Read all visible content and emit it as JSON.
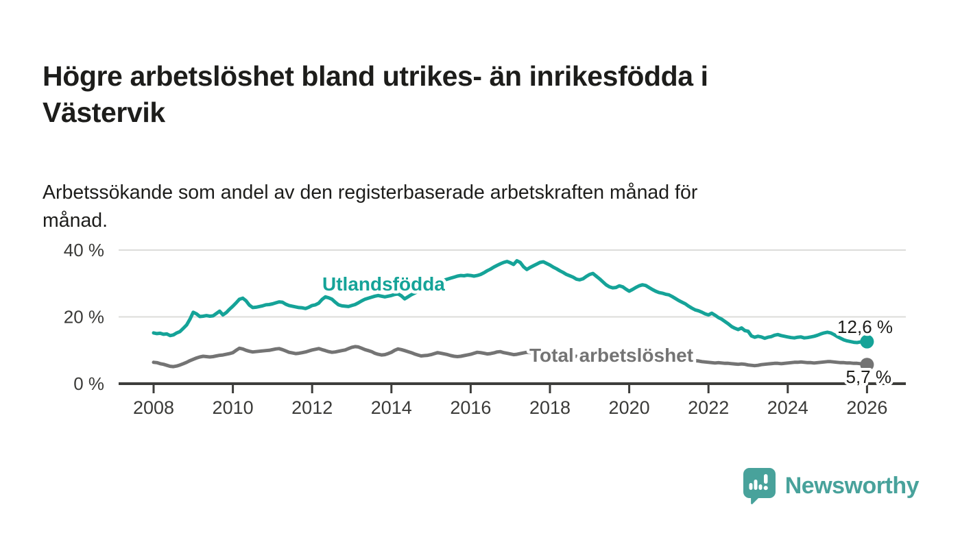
{
  "branding": {
    "logo_text": "Newsworthy",
    "logo_icon": "newsworthy-bar-chart-speech-bubble-icon",
    "logo_color": "#48a29b"
  },
  "colors": {
    "accent_teal": "#15a398",
    "series_gray": "#747474",
    "axis": "#3d3d3b",
    "gridline": "#dcdcda",
    "text_dark": "#1d1d1b",
    "tick_text": "#3a3a38"
  },
  "chart_data": {
    "type": "line",
    "title": "Högre arbetslöshet bland utrikes- än inrikesfödda i Västervik",
    "subtitle": "Arbetssökande som andel av den registerbaserade arbetskraften månad för månad.",
    "xlabel": "",
    "ylabel": "",
    "grid": "horizontal",
    "legend_position": "inline-labels",
    "x_axis": {
      "unit": "year",
      "range": [
        2007.1,
        2027.0
      ],
      "ticks": [
        2008,
        2010,
        2012,
        2014,
        2016,
        2018,
        2020,
        2022,
        2024,
        2026
      ]
    },
    "y_axis": {
      "unit": "percent",
      "range": [
        0,
        44
      ],
      "ticks": [
        {
          "value": 0,
          "label": "0 %"
        },
        {
          "value": 20,
          "label": "20 %"
        },
        {
          "value": 40,
          "label": "40 %"
        }
      ]
    },
    "series": [
      {
        "name": "Utlandsfödda",
        "color": "#15a398",
        "end_label": "12,6 %",
        "end_value": 12.6,
        "x_start": 2008,
        "x_step_months": 1,
        "values": [
          15.2,
          15.0,
          15.1,
          14.8,
          14.9,
          14.4,
          14.6,
          15.2,
          15.6,
          16.6,
          17.6,
          19.3,
          21.4,
          20.9,
          20.1,
          20.2,
          20.4,
          20.2,
          20.3,
          21.0,
          21.7,
          20.6,
          21.3,
          22.3,
          23.2,
          24.2,
          25.3,
          25.6,
          24.8,
          23.5,
          22.8,
          22.9,
          23.1,
          23.3,
          23.6,
          23.7,
          23.9,
          24.2,
          24.5,
          24.4,
          23.8,
          23.4,
          23.2,
          23.0,
          22.8,
          22.7,
          22.5,
          22.9,
          23.4,
          23.6,
          24.1,
          25.2,
          26.0,
          25.7,
          25.3,
          24.4,
          23.6,
          23.3,
          23.2,
          23.1,
          23.4,
          23.7,
          24.2,
          24.8,
          25.3,
          25.6,
          25.9,
          26.2,
          26.4,
          26.2,
          26.0,
          26.2,
          26.4,
          26.7,
          26.9,
          26.3,
          25.4,
          26.0,
          26.6,
          27.1,
          27.6,
          28.0,
          28.4,
          28.9,
          29.4,
          29.9,
          30.3,
          30.7,
          31.0,
          31.3,
          31.6,
          31.9,
          32.2,
          32.4,
          32.3,
          32.5,
          32.4,
          32.2,
          32.4,
          32.7,
          33.2,
          33.8,
          34.3,
          34.9,
          35.4,
          35.9,
          36.3,
          36.6,
          36.2,
          35.7,
          36.8,
          36.3,
          35.0,
          34.2,
          34.8,
          35.3,
          35.8,
          36.3,
          36.5,
          36.0,
          35.5,
          34.9,
          34.4,
          33.8,
          33.3,
          32.7,
          32.3,
          31.9,
          31.3,
          31.1,
          31.4,
          32.1,
          32.7,
          33.0,
          32.2,
          31.4,
          30.5,
          29.6,
          29.0,
          28.7,
          28.8,
          29.3,
          29.0,
          28.3,
          27.7,
          28.2,
          28.8,
          29.3,
          29.6,
          29.4,
          28.8,
          28.2,
          27.7,
          27.3,
          27.1,
          26.8,
          26.6,
          26.1,
          25.5,
          24.9,
          24.4,
          23.9,
          23.2,
          22.6,
          22.1,
          21.8,
          21.4,
          20.9,
          20.6,
          21.1,
          20.5,
          19.8,
          19.3,
          18.6,
          17.9,
          17.1,
          16.6,
          16.2,
          16.7,
          15.9,
          15.7,
          14.3,
          13.9,
          14.2,
          14.0,
          13.6,
          13.9,
          14.1,
          14.5,
          14.7,
          14.4,
          14.2,
          14.0,
          13.8,
          13.7,
          13.9,
          14.0,
          13.7,
          13.8,
          14.0,
          14.2,
          14.5,
          14.9,
          15.2,
          15.4,
          15.2,
          14.7,
          14.1,
          13.6,
          13.1,
          12.8,
          12.6,
          12.4,
          12.3,
          12.5,
          12.7,
          12.6
        ]
      },
      {
        "name": "Total arbetslöshet",
        "color": "#747474",
        "end_label": "5,7 %",
        "end_value": 5.7,
        "x_start": 2008,
        "x_step_months": 1,
        "values": [
          6.4,
          6.3,
          6.0,
          5.8,
          5.5,
          5.2,
          5.1,
          5.3,
          5.6,
          6.0,
          6.4,
          6.9,
          7.3,
          7.7,
          8.0,
          8.2,
          8.1,
          8.0,
          8.1,
          8.3,
          8.5,
          8.6,
          8.8,
          9.0,
          9.3,
          10.0,
          10.6,
          10.4,
          10.0,
          9.7,
          9.5,
          9.6,
          9.7,
          9.8,
          9.9,
          10.0,
          10.2,
          10.4,
          10.5,
          10.2,
          9.8,
          9.4,
          9.2,
          9.0,
          9.1,
          9.3,
          9.5,
          9.8,
          10.1,
          10.3,
          10.5,
          10.2,
          9.9,
          9.6,
          9.4,
          9.5,
          9.7,
          9.9,
          10.1,
          10.5,
          10.9,
          11.1,
          11.0,
          10.6,
          10.2,
          9.9,
          9.6,
          9.1,
          8.8,
          8.6,
          8.7,
          9.0,
          9.4,
          10.0,
          10.4,
          10.2,
          9.9,
          9.6,
          9.3,
          8.9,
          8.6,
          8.3,
          8.4,
          8.5,
          8.7,
          9.0,
          9.3,
          9.1,
          8.9,
          8.7,
          8.4,
          8.2,
          8.1,
          8.2,
          8.4,
          8.6,
          8.8,
          9.1,
          9.4,
          9.3,
          9.1,
          8.9,
          9.0,
          9.2,
          9.5,
          9.6,
          9.3,
          9.1,
          8.9,
          8.7,
          8.8,
          9.0,
          9.2,
          9.4,
          9.3,
          9.2,
          9.1,
          9.0,
          8.9,
          8.9,
          8.8,
          8.7,
          8.6,
          8.5,
          8.4,
          8.4,
          8.3,
          8.2,
          8.2,
          8.1,
          8.1,
          8.2,
          8.2,
          8.1,
          8.1,
          8.0,
          8.0,
          7.9,
          7.9,
          7.8,
          7.8,
          7.9,
          7.9,
          8.0,
          8.1,
          8.3,
          8.6,
          8.8,
          8.9,
          8.8,
          8.7,
          8.6,
          8.5,
          8.4,
          8.3,
          8.1,
          8.0,
          7.9,
          7.7,
          7.6,
          7.4,
          7.3,
          7.1,
          7.0,
          6.9,
          6.8,
          6.6,
          6.5,
          6.4,
          6.3,
          6.2,
          6.3,
          6.2,
          6.1,
          6.1,
          6.0,
          5.9,
          5.8,
          5.9,
          5.8,
          5.6,
          5.5,
          5.4,
          5.5,
          5.7,
          5.8,
          5.9,
          6.0,
          6.1,
          6.1,
          6.0,
          6.1,
          6.2,
          6.3,
          6.4,
          6.4,
          6.5,
          6.4,
          6.3,
          6.3,
          6.2,
          6.3,
          6.4,
          6.5,
          6.6,
          6.6,
          6.5,
          6.4,
          6.3,
          6.3,
          6.2,
          6.2,
          6.1,
          6.1,
          6.0,
          5.9,
          5.7
        ]
      }
    ]
  }
}
